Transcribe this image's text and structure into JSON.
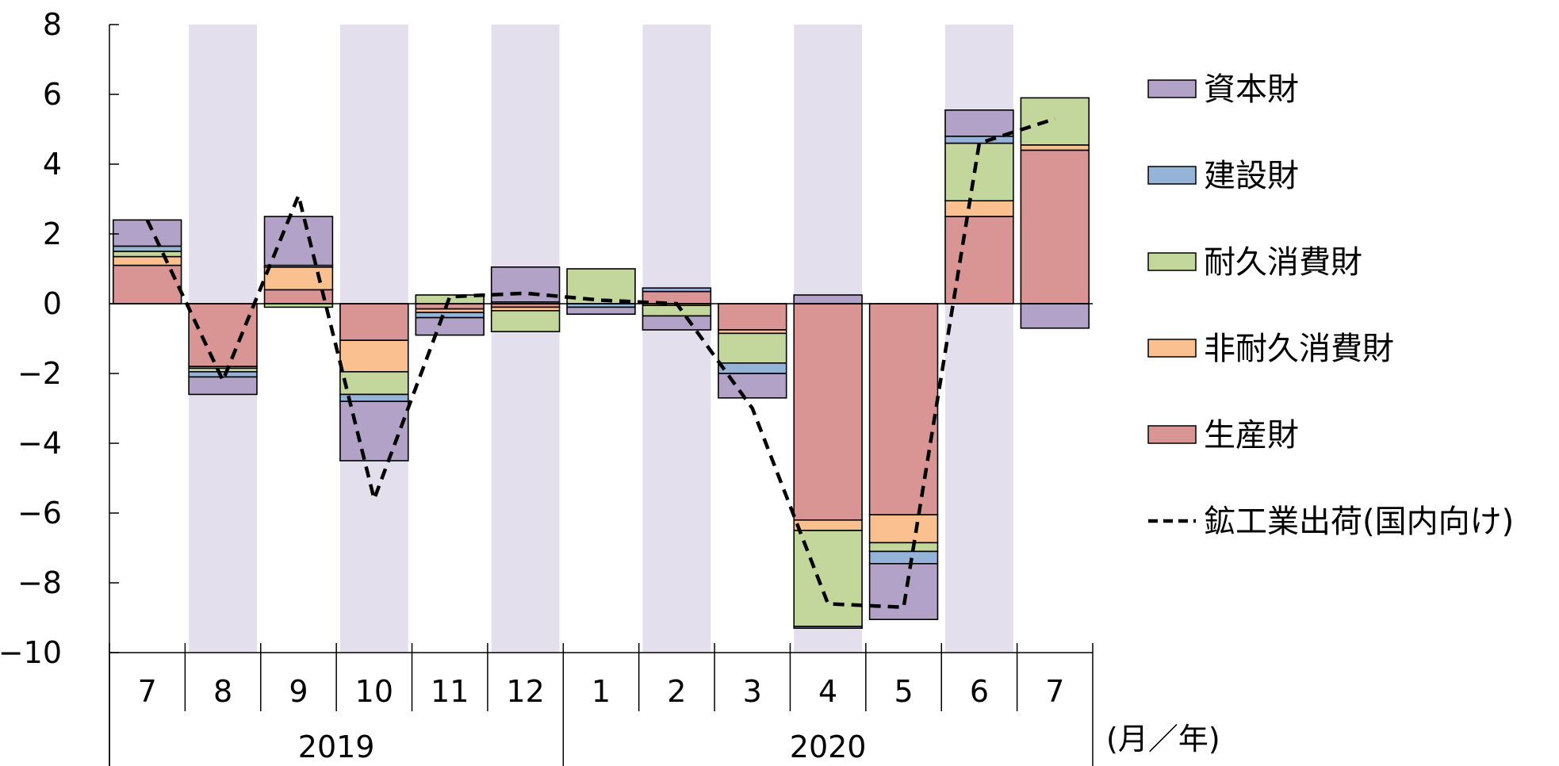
{
  "chart_data": {
    "type": "bar",
    "stacked": true,
    "title": "",
    "xlabel": "(月／年)",
    "ylabel": "",
    "ylim": [
      -10,
      8
    ],
    "yticks": [
      8,
      6,
      4,
      2,
      0,
      -2,
      -4,
      -6,
      -8,
      -10
    ],
    "ytick_labels": [
      "8",
      "6",
      "4",
      "2",
      "0",
      "−2",
      "−4",
      "−6",
      "−8",
      "−10"
    ],
    "grid": false,
    "legend_position": "right",
    "categories": [
      "7",
      "8",
      "9",
      "10",
      "11",
      "12",
      "1",
      "2",
      "3",
      "4",
      "5",
      "6",
      "7"
    ],
    "year_groups": [
      {
        "label": "2019",
        "count": 6
      },
      {
        "label": "2020",
        "count": 7
      }
    ],
    "shaded_columns": [
      1,
      3,
      5,
      7,
      9,
      11
    ],
    "series": [
      {
        "name": "生産財",
        "color": "#d99594",
        "values": [
          1.1,
          -1.8,
          0.4,
          -1.05,
          -0.15,
          -0.1,
          0.0,
          0.35,
          -0.75,
          -6.2,
          -6.05,
          2.5,
          4.4
        ]
      },
      {
        "name": "非耐久消費財",
        "color": "#fac090",
        "values": [
          0.25,
          -0.05,
          0.65,
          -0.9,
          -0.1,
          -0.1,
          0.0,
          -0.05,
          -0.1,
          -0.3,
          -0.8,
          0.45,
          0.15
        ]
      },
      {
        "name": "耐久消費財",
        "color": "#c3d69b",
        "values": [
          0.15,
          -0.1,
          -0.1,
          -0.65,
          0.25,
          -0.6,
          1.0,
          -0.3,
          -0.85,
          -2.75,
          -0.25,
          1.65,
          1.35
        ]
      },
      {
        "name": "建設財",
        "color": "#95b3d7",
        "values": [
          0.15,
          -0.15,
          0.05,
          -0.2,
          -0.15,
          0.05,
          -0.1,
          0.1,
          -0.3,
          -0.05,
          -0.35,
          0.2,
          0.0
        ]
      },
      {
        "name": "資本財",
        "color": "#b2a2c7",
        "values": [
          0.75,
          -0.5,
          1.4,
          -1.7,
          -0.5,
          1.0,
          -0.2,
          -0.4,
          -0.7,
          0.25,
          -1.6,
          0.75,
          -0.7
        ]
      }
    ],
    "line_series": {
      "name": "鉱工業出荷(国内向け)",
      "style": "dashed",
      "color": "#000000",
      "values": [
        2.4,
        -2.2,
        3.1,
        -5.6,
        0.2,
        0.3,
        0.1,
        0.0,
        -3.0,
        -8.6,
        -8.7,
        4.6,
        5.3
      ]
    }
  },
  "legend": {
    "items": [
      "資本財",
      "建設財",
      "耐久消費財",
      "非耐久消費財",
      "生産財",
      "鉱工業出荷(国内向け)"
    ],
    "colors": [
      "#b2a2c7",
      "#95b3d7",
      "#c3d69b",
      "#fac090",
      "#d99594",
      "#000000"
    ]
  },
  "band_color": "#e4dfec"
}
